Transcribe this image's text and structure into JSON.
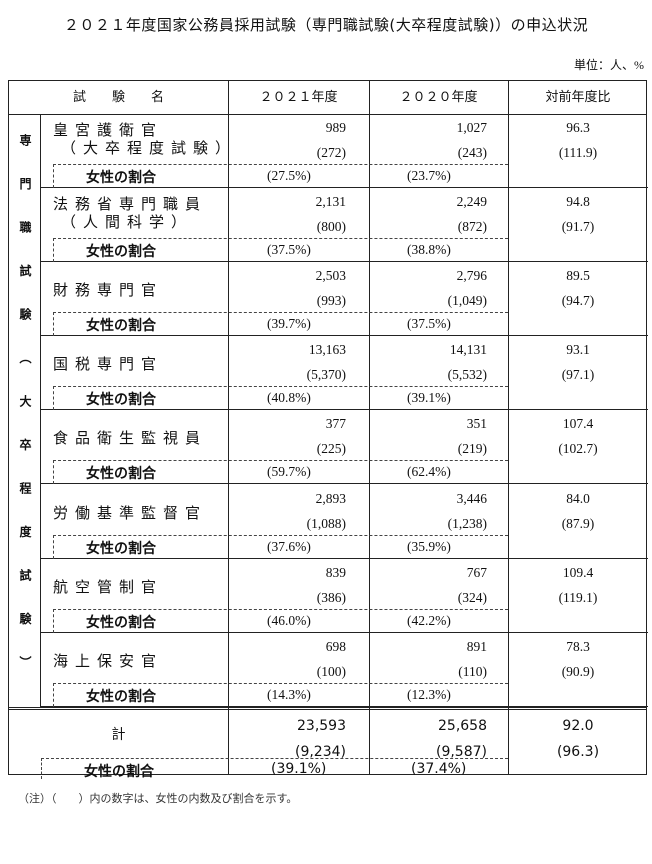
{
  "title": "２０２１年度国家公務員採用試験（専門職試験(大卒程度試験)）の申込状況",
  "unit": "単位：人、%",
  "headers": {
    "name": "試　　験　　名",
    "y2021": "２０２１年度",
    "y2020": "２０２０年度",
    "ratio": "対前年度比"
  },
  "side_label": "専門職試験︵大卒程度試験︶",
  "female_label": "女性の割合",
  "rows": [
    {
      "name": "皇宮護衛官",
      "sub": "（大卒程度試験）",
      "y2021": "989",
      "y2021_f": "(272)",
      "y2020": "1,027",
      "y2020_f": "(243)",
      "ratio": "96.3",
      "ratio_f": "(111.9)",
      "p2021": "(27.5%)",
      "p2020": "(23.7%)"
    },
    {
      "name": "法務省専門職員",
      "sub": "（人間科学）",
      "y2021": "2,131",
      "y2021_f": "(800)",
      "y2020": "2,249",
      "y2020_f": "(872)",
      "ratio": "94.8",
      "ratio_f": "(91.7)",
      "p2021": "(37.5%)",
      "p2020": "(38.8%)"
    },
    {
      "name": "財務専門官",
      "sub": "",
      "y2021": "2,503",
      "y2021_f": "(993)",
      "y2020": "2,796",
      "y2020_f": "(1,049)",
      "ratio": "89.5",
      "ratio_f": "(94.7)",
      "p2021": "(39.7%)",
      "p2020": "(37.5%)"
    },
    {
      "name": "国税専門官",
      "sub": "",
      "y2021": "13,163",
      "y2021_f": "(5,370)",
      "y2020": "14,131",
      "y2020_f": "(5,532)",
      "ratio": "93.1",
      "ratio_f": "(97.1)",
      "p2021": "(40.8%)",
      "p2020": "(39.1%)"
    },
    {
      "name": "食品衛生監視員",
      "sub": "",
      "y2021": "377",
      "y2021_f": "(225)",
      "y2020": "351",
      "y2020_f": "(219)",
      "ratio": "107.4",
      "ratio_f": "(102.7)",
      "p2021": "(59.7%)",
      "p2020": "(62.4%)"
    },
    {
      "name": "労働基準監督官",
      "sub": "",
      "y2021": "2,893",
      "y2021_f": "(1,088)",
      "y2020": "3,446",
      "y2020_f": "(1,238)",
      "ratio": "84.0",
      "ratio_f": "(87.9)",
      "p2021": "(37.6%)",
      "p2020": "(35.9%)"
    },
    {
      "name": "航空管制官",
      "sub": "",
      "y2021": "839",
      "y2021_f": "(386)",
      "y2020": "767",
      "y2020_f": "(324)",
      "ratio": "109.4",
      "ratio_f": "(119.1)",
      "p2021": "(46.0%)",
      "p2020": "(42.2%)"
    },
    {
      "name": "海上保安官",
      "sub": "",
      "y2021": "698",
      "y2021_f": "(100)",
      "y2020": "891",
      "y2020_f": "(110)",
      "ratio": "78.3",
      "ratio_f": "(90.9)",
      "p2021": "(14.3%)",
      "p2020": "(12.3%)"
    }
  ],
  "total": {
    "name": "計",
    "y2021": "23,593",
    "y2021_f": "(9,234)",
    "y2020": "25,658",
    "y2020_f": "(9,587)",
    "ratio": "92.0",
    "ratio_f": "(96.3)",
    "p2021": "(39.1%)",
    "p2020": "(37.4%)"
  },
  "note": "（注）（　　）内の数字は、女性の内数及び割合を示す。"
}
